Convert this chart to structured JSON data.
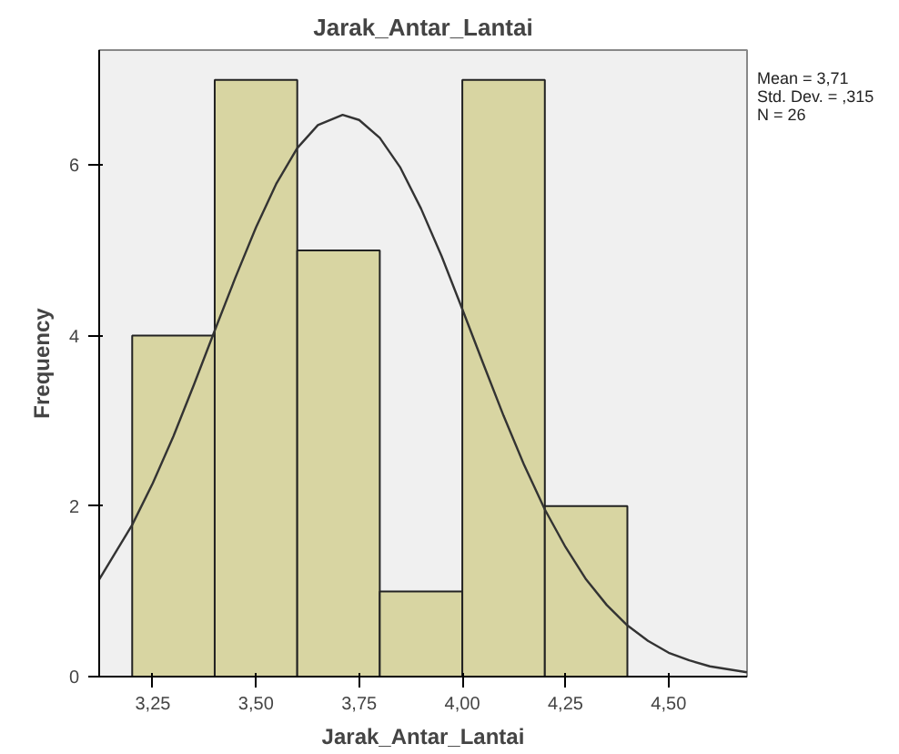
{
  "chart_data": {
    "type": "histogram",
    "title": "Jarak_Antar_Lantai",
    "xlabel": "Jarak_Antar_Lantai",
    "ylabel": "Frequency",
    "series": [
      {
        "color": "#d8d5a2",
        "bins": [
          3.2,
          3.4,
          3.6,
          3.8,
          4.0,
          4.2,
          4.4
        ],
        "values": [
          4,
          7,
          5,
          1,
          7,
          2
        ]
      },
      {
        "type": "line",
        "color": "#333333",
        "x": [
          3.12,
          3.2,
          3.25,
          3.3,
          3.35,
          3.4,
          3.45,
          3.5,
          3.55,
          3.6,
          3.65,
          3.71,
          3.75,
          3.8,
          3.85,
          3.9,
          3.95,
          4.0,
          4.05,
          4.1,
          4.15,
          4.2,
          4.25,
          4.3,
          4.35,
          4.4,
          4.45,
          4.5,
          4.55,
          4.6,
          4.69
        ],
        "values": [
          1.14,
          1.78,
          2.27,
          2.82,
          3.43,
          4.06,
          4.68,
          5.27,
          5.79,
          6.2,
          6.47,
          6.59,
          6.53,
          6.32,
          5.97,
          5.49,
          4.93,
          4.31,
          3.68,
          3.06,
          2.48,
          1.96,
          1.52,
          1.14,
          0.84,
          0.6,
          0.42,
          0.28,
          0.19,
          0.12,
          0.05
        ]
      }
    ],
    "xlim": [
      3.12,
      4.69
    ],
    "ylim": [
      0,
      7.35
    ],
    "xticks": [
      {
        "value": 3.25,
        "label": "3,25"
      },
      {
        "value": 3.5,
        "label": "3,50"
      },
      {
        "value": 3.75,
        "label": "3,75"
      },
      {
        "value": 4.0,
        "label": "4,00"
      },
      {
        "value": 4.25,
        "label": "4,25"
      },
      {
        "value": 4.5,
        "label": "4,50"
      }
    ],
    "yticks": [
      0,
      2,
      4,
      6
    ],
    "annotations": [
      "Mean = 3,71",
      "Std. Dev. = ,315",
      "N = 26"
    ]
  }
}
